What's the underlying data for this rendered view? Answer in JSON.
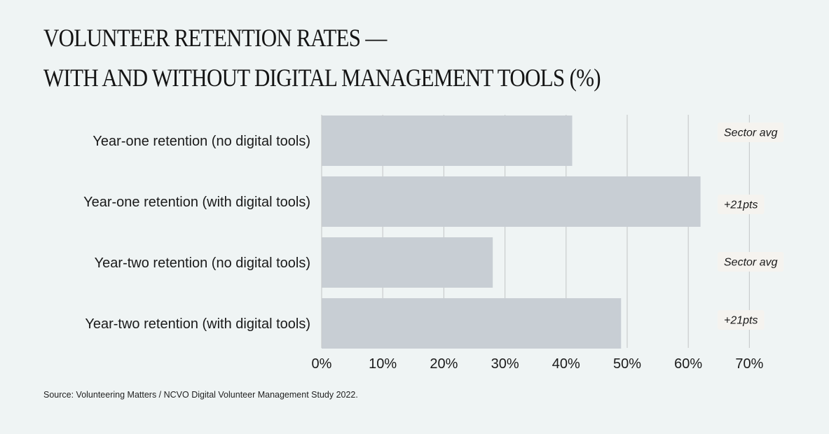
{
  "title_lines": [
    "VOLUNTEER RETENTION RATES —",
    "WITH AND WITHOUT DIGITAL MANAGEMENT TOOLS (%)"
  ],
  "source": "Source: Volunteering Matters / NCVO Digital Volunteer Management Study 2022.",
  "colors": {
    "bar": "#c8ced4",
    "grid": "#c9cccd",
    "annotation_bg": "#f5f3ef",
    "background": "#eff4f4"
  },
  "chart_data": {
    "type": "bar",
    "orientation": "horizontal",
    "title": "VOLUNTEER RETENTION RATES — WITH AND WITHOUT DIGITAL MANAGEMENT TOOLS (%)",
    "categories": [
      "Year-one retention (no digital tools)",
      "Year-one retention (with digital tools)",
      "Year-two retention (no digital tools)",
      "Year-two retention (with digital tools)"
    ],
    "values": [
      41,
      62,
      28,
      49
    ],
    "xlim": [
      0,
      70
    ],
    "x_ticks": [
      0,
      10,
      20,
      30,
      40,
      50,
      60,
      70
    ],
    "x_tick_labels": [
      "0%",
      "10%",
      "20%",
      "30%",
      "40%",
      "50%",
      "60%",
      "70%"
    ],
    "xlabel": "",
    "ylabel": "",
    "grid": "vertical",
    "legend": "none",
    "annotations": [
      "Sector avg",
      "+21pts",
      "Sector avg",
      "+21pts"
    ]
  }
}
